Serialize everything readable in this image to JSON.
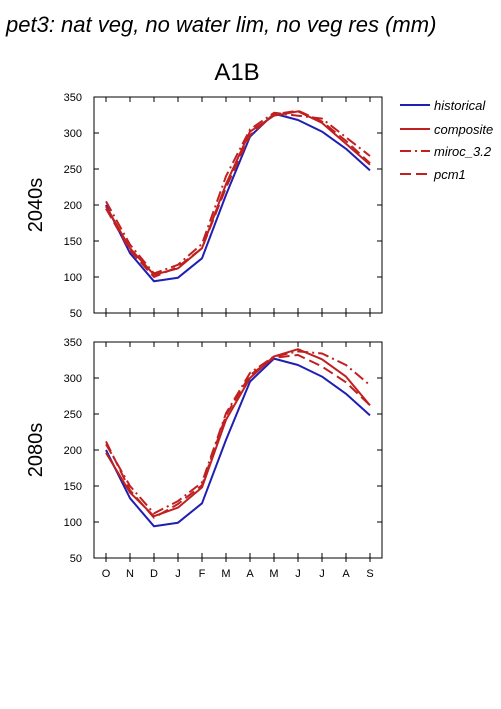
{
  "title": "pet3: nat veg, no water lim, no veg res (mm)",
  "scenario": "A1B",
  "colors": {
    "historical": "#1f1fb4",
    "future": "#c02020"
  },
  "legend": [
    {
      "label": "historical",
      "style": "solid",
      "color": "#1f1fb4"
    },
    {
      "label": "composite",
      "style": "solid",
      "color": "#c02020"
    },
    {
      "label": "miroc_3.2",
      "style": "dashdot",
      "color": "#c02020"
    },
    {
      "label": "pcm1",
      "style": "dash",
      "color": "#c02020"
    }
  ],
  "chart_data": [
    {
      "type": "line",
      "row_label": "2040s",
      "categories": [
        "O",
        "N",
        "D",
        "J",
        "F",
        "M",
        "A",
        "M",
        "J",
        "J",
        "A",
        "S"
      ],
      "ylim": [
        50,
        350
      ],
      "yticks": [
        50,
        100,
        150,
        200,
        250,
        300,
        350
      ],
      "grid": false,
      "legend_position": "right",
      "series": [
        {
          "name": "historical",
          "style": "solid",
          "color": "#1f1fb4",
          "values": [
            200,
            133,
            94,
            99,
            126,
            214,
            295,
            327,
            318,
            302,
            278,
            248
          ]
        },
        {
          "name": "composite",
          "style": "solid",
          "color": "#c02020",
          "values": [
            198,
            140,
            103,
            112,
            140,
            229,
            302,
            324,
            330,
            314,
            285,
            256
          ]
        },
        {
          "name": "miroc_3.2",
          "style": "dashdot",
          "color": "#c02020",
          "values": [
            205,
            145,
            105,
            117,
            146,
            240,
            305,
            328,
            324,
            320,
            294,
            268
          ]
        },
        {
          "name": "pcm1",
          "style": "dash",
          "color": "#c02020",
          "values": [
            195,
            137,
            100,
            114,
            140,
            224,
            297,
            326,
            331,
            316,
            289,
            258
          ]
        }
      ]
    },
    {
      "type": "line",
      "row_label": "2080s",
      "categories": [
        "O",
        "N",
        "D",
        "J",
        "F",
        "M",
        "A",
        "M",
        "J",
        "J",
        "A",
        "S"
      ],
      "ylim": [
        50,
        350
      ],
      "yticks": [
        50,
        100,
        150,
        200,
        250,
        300,
        350
      ],
      "grid": false,
      "legend_position": "none",
      "series": [
        {
          "name": "historical",
          "style": "solid",
          "color": "#1f1fb4",
          "values": [
            200,
            133,
            94,
            99,
            126,
            214,
            295,
            327,
            318,
            302,
            278,
            248
          ]
        },
        {
          "name": "composite",
          "style": "solid",
          "color": "#c02020",
          "values": [
            196,
            141,
            108,
            120,
            148,
            242,
            300,
            330,
            340,
            326,
            302,
            262
          ]
        },
        {
          "name": "miroc_3.2",
          "style": "dashdot",
          "color": "#c02020",
          "values": [
            208,
            150,
            112,
            129,
            155,
            251,
            307,
            330,
            337,
            334,
            318,
            290
          ]
        },
        {
          "name": "pcm1",
          "style": "dash",
          "color": "#c02020",
          "values": [
            212,
            144,
            106,
            125,
            151,
            248,
            304,
            328,
            332,
            316,
            294,
            262
          ]
        }
      ]
    }
  ]
}
